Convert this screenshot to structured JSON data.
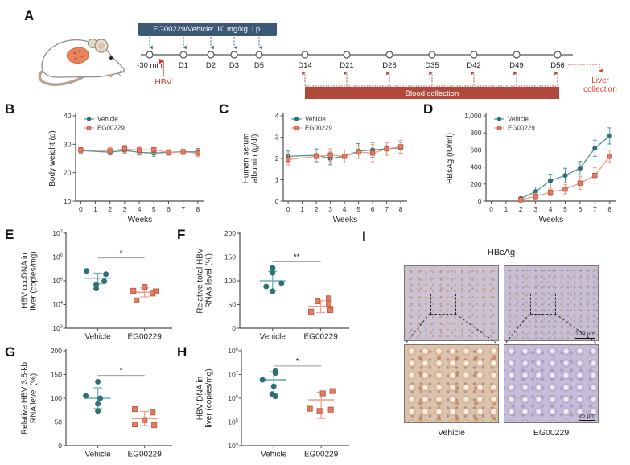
{
  "colors": {
    "vehicle_fill": "#2f7076",
    "vehicle_line": "#4f9297",
    "vehicle_light": "#6fb0b4",
    "eg_fill": "#e07e64",
    "eg_stroke": "#bf5540",
    "eg_line": "#ef9a84",
    "eg_light": "#f2a08c",
    "axis": "#4d4d4d",
    "sig_line": "#9a9a9a",
    "box_blue": "#3b5877",
    "arrow_blue": "#4a6fa5",
    "red": "#d93a2b",
    "bar_red": "#b0493c"
  },
  "panels": {
    "A": {
      "label": "A",
      "treatment_box": "EG00229/Vehicle: 10 mg/kg, i.p.",
      "hbv": "HBV",
      "blood_bar": "Blood collection",
      "liver_line1": "Liver",
      "liver_line2": "collection",
      "treatment_timepoints": [
        "-30 min",
        "D1",
        "D2",
        "D3",
        "D5"
      ],
      "collection_timepoints": [
        "D14",
        "D21",
        "D28",
        "D35",
        "D42",
        "D49",
        "D56"
      ]
    },
    "B": {
      "label": "B"
    },
    "C": {
      "label": "C"
    },
    "D": {
      "label": "D"
    },
    "E": {
      "label": "E"
    },
    "F": {
      "label": "F"
    },
    "G": {
      "label": "G"
    },
    "H": {
      "label": "H"
    },
    "I": {
      "label": "I",
      "title": "HBcAg",
      "columns": [
        "Vehicle",
        "EG00229"
      ],
      "scale_top": "100 μm",
      "scale_bottom": "25 μm"
    }
  },
  "chart_data": [
    {
      "id": "chartB",
      "type": "line",
      "title": "",
      "ylabel": [
        "Body weight (g)"
      ],
      "xlabel": "Weeks",
      "ylim": [
        10,
        40
      ],
      "yticks": [
        10,
        20,
        30,
        40
      ],
      "xlim": [
        -0.35,
        8.45
      ],
      "xticks": [
        0,
        1,
        2,
        3,
        4,
        5,
        6,
        7,
        8
      ],
      "x": [
        0,
        2,
        3,
        4,
        5,
        6,
        7,
        8
      ],
      "legend_pos": "top-left",
      "series": [
        {
          "name": "Vehicle",
          "marker": "circle",
          "values": [
            27.8,
            27.2,
            27.8,
            27.2,
            26.9,
            27.2,
            27.4,
            27.3
          ],
          "err": [
            0.9,
            1.0,
            1.1,
            1.0,
            1.1,
            0.9,
            0.9,
            1.2
          ]
        },
        {
          "name": "EG00229",
          "marker": "square",
          "values": [
            28.0,
            27.7,
            28.4,
            27.9,
            28.1,
            27.1,
            27.3,
            26.9
          ],
          "err": [
            0.9,
            1.2,
            1.3,
            1.1,
            1.3,
            1.0,
            1.0,
            1.3
          ]
        }
      ]
    },
    {
      "id": "chartC",
      "type": "line",
      "title": "",
      "ylabel": [
        "Human serum",
        "albumin (g/dl)"
      ],
      "xlabel": "Weeks",
      "ylim": [
        0,
        4
      ],
      "yticks": [
        0,
        1,
        2,
        3,
        4
      ],
      "xlim": [
        -0.35,
        8.45
      ],
      "xticks": [
        0,
        1,
        2,
        3,
        4,
        5,
        6,
        7,
        8
      ],
      "x": [
        0,
        2,
        3,
        4,
        5,
        6,
        7,
        8
      ],
      "legend_pos": "top-left",
      "series": [
        {
          "name": "Vehicle",
          "marker": "circle",
          "values": [
            2.1,
            2.15,
            2.0,
            2.1,
            2.35,
            2.4,
            2.45,
            2.5
          ],
          "err": [
            0.25,
            0.3,
            0.3,
            0.3,
            0.35,
            0.35,
            0.3,
            0.25
          ]
        },
        {
          "name": "EG00229",
          "marker": "square",
          "values": [
            1.95,
            2.1,
            2.15,
            2.1,
            2.3,
            2.25,
            2.45,
            2.55
          ],
          "err": [
            0.25,
            0.3,
            0.3,
            0.3,
            0.3,
            0.4,
            0.3,
            0.3
          ]
        }
      ]
    },
    {
      "id": "chartD",
      "type": "line",
      "title": "",
      "ylabel": [
        "HBsAg (IU/ml)"
      ],
      "xlabel": "Weeks",
      "ylim": [
        0,
        1000
      ],
      "yticks": [
        0,
        200,
        400,
        600,
        800,
        1000
      ],
      "ytick_labels": [
        "0",
        "200",
        "400",
        "600",
        "800",
        "1,000"
      ],
      "xlim": [
        -0.35,
        8.45
      ],
      "xticks": [
        0,
        1,
        2,
        3,
        4,
        5,
        6,
        7,
        8
      ],
      "x": [
        2,
        3,
        4,
        5,
        6,
        7,
        8
      ],
      "legend_pos": "top-left",
      "series": [
        {
          "name": "Vehicle",
          "marker": "circle",
          "values": [
            30,
            110,
            240,
            300,
            385,
            620,
            765
          ],
          "err": [
            20,
            55,
            75,
            85,
            80,
            95,
            95
          ]
        },
        {
          "name": "EG00229",
          "marker": "square",
          "values": [
            15,
            55,
            105,
            140,
            210,
            300,
            525
          ],
          "err": [
            10,
            35,
            45,
            55,
            75,
            90,
            70
          ]
        }
      ]
    },
    {
      "id": "chartE",
      "type": "scatter",
      "ylabel": [
        "HBV cccDNA in",
        "liver (copies/mg)"
      ],
      "yscale": "log",
      "ylim_exp": [
        3,
        7
      ],
      "groups": [
        "Vehicle",
        "EG00229"
      ],
      "sig": "*",
      "sig_frac": 0.26,
      "series": [
        {
          "name": "Vehicle",
          "marker": "circle",
          "values": [
            260000,
            190000,
            95000,
            68000,
            47000
          ],
          "dx": [
            -14,
            10,
            8,
            -2,
            -2
          ],
          "mean": 130000,
          "err_hi": 210000,
          "err_lo": 75000
        },
        {
          "name": "EG00229",
          "marker": "square",
          "values": [
            55000,
            38000,
            36000,
            29000,
            15000
          ],
          "dx": [
            0,
            -14,
            14,
            10,
            -10
          ],
          "mean": 33000,
          "err_hi": 50000,
          "err_lo": 21000
        }
      ]
    },
    {
      "id": "chartF",
      "type": "scatter",
      "ylabel": [
        "Relative total HBV",
        "RNAs level (%)"
      ],
      "yscale": "linear",
      "ylim": [
        0,
        200
      ],
      "yticks": [
        0,
        50,
        100,
        150,
        200
      ],
      "groups": [
        "Vehicle",
        "EG00229"
      ],
      "sig": "**",
      "sig_frac": 0.3,
      "series": [
        {
          "name": "Vehicle",
          "marker": "circle",
          "values": [
            127,
            117,
            95,
            88,
            78
          ],
          "dx": [
            0,
            0,
            11,
            -8,
            0
          ],
          "mean": 100,
          "err_hi": 120,
          "err_lo": 80
        },
        {
          "name": "EG00229",
          "marker": "square",
          "values": [
            63,
            57,
            52,
            38,
            35
          ],
          "dx": [
            10,
            -4,
            10,
            12,
            -12
          ],
          "mean": 46,
          "err_hi": 58,
          "err_lo": 33
        }
      ]
    },
    {
      "id": "chartG",
      "type": "scatter",
      "ylabel": [
        "Relative HBV 3.5-kb",
        "RNA level (%)"
      ],
      "yscale": "linear",
      "ylim": [
        0,
        200
      ],
      "yticks": [
        0,
        50,
        100,
        150,
        200
      ],
      "groups": [
        "Vehicle",
        "EG00229"
      ],
      "sig": "*",
      "sig_frac": 0.26,
      "series": [
        {
          "name": "Vehicle",
          "marker": "circle",
          "values": [
            135,
            105,
            100,
            88,
            73
          ],
          "dx": [
            0,
            -15,
            3,
            0,
            0
          ],
          "mean": 100,
          "err_hi": 122,
          "err_lo": 78
        },
        {
          "name": "EG00229",
          "marker": "square",
          "values": [
            77,
            70,
            54,
            45,
            43
          ],
          "dx": [
            -12,
            10,
            0,
            -12,
            12
          ],
          "mean": 57,
          "err_hi": 72,
          "err_lo": 42
        }
      ]
    },
    {
      "id": "chartH",
      "type": "scatter",
      "ylabel": [
        "HBV DNA in",
        "liver (copies/mg)"
      ],
      "yscale": "log",
      "ylim_exp": [
        4,
        8
      ],
      "groups": [
        "Vehicle",
        "EG00229"
      ],
      "sig": "*",
      "sig_frac": 0.16,
      "series": [
        {
          "name": "Vehicle",
          "marker": "circle",
          "values": [
            14000000,
            11500000,
            6000000,
            3200000,
            1500000,
            1200000
          ],
          "dx": [
            2,
            2,
            -14,
            0,
            -2,
            2
          ],
          "mean": 6000000,
          "err_hi": 13000000,
          "err_lo": 1500000
        },
        {
          "name": "EG00229",
          "marker": "square",
          "values": [
            2000000,
            1600000,
            360000,
            330000,
            290000
          ],
          "dx": [
            14,
            2,
            -14,
            12,
            -2
          ],
          "mean": 850000,
          "err_hi": 1800000,
          "err_lo": 140000
        }
      ]
    }
  ]
}
